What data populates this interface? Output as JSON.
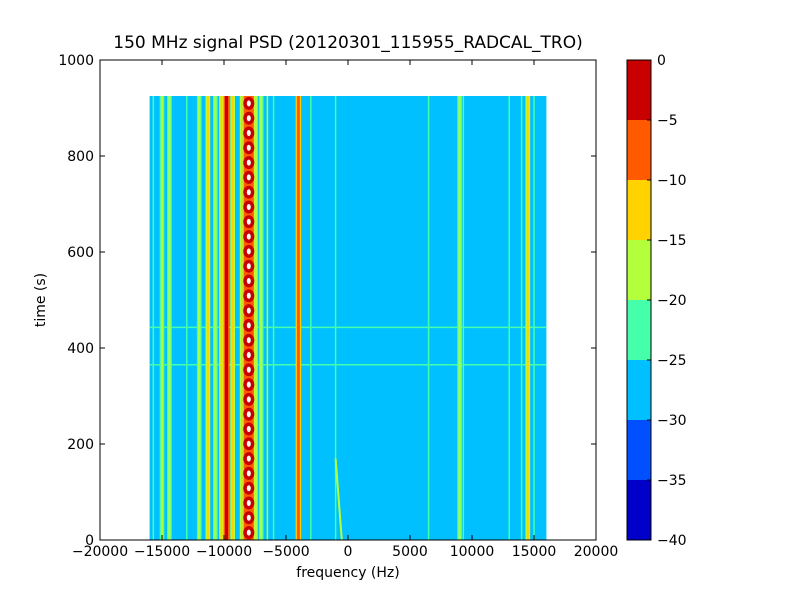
{
  "chart_data": {
    "type": "heatmap",
    "title": "150 MHz signal PSD (20120301_115955_RADCAL_TRO)",
    "xlabel": "frequency (Hz)",
    "ylabel": "time (s)",
    "xlim": [
      -20000,
      20000
    ],
    "ylim": [
      0,
      1000
    ],
    "xticks": [
      -20000,
      -15000,
      -10000,
      -5000,
      0,
      5000,
      10000,
      15000,
      20000
    ],
    "xtick_labels": [
      "−20000",
      "−15000",
      "−10000",
      "−5000",
      "0",
      "5000",
      "10000",
      "15000",
      "20000"
    ],
    "yticks": [
      0,
      200,
      400,
      600,
      800,
      1000
    ],
    "ytick_labels": [
      "0",
      "200",
      "400",
      "600",
      "800",
      "1000"
    ],
    "data_extent": {
      "freq_min": -16000,
      "freq_max": 16000,
      "time_min": 0,
      "time_max": 925
    },
    "background_level": -27.5,
    "colorbar": {
      "levels": [
        0,
        -5,
        -10,
        -15,
        -20,
        -25,
        -30,
        -35,
        -40
      ],
      "tick_labels": [
        "0",
        "−5",
        "−10",
        "−15",
        "−20",
        "−25",
        "−30",
        "−35",
        "−40"
      ],
      "band_colors": [
        "#c80000",
        "#ff5a00",
        "#ffd200",
        "#b4ff3c",
        "#46ffaa",
        "#00c0ff",
        "#0050ff",
        "#0000c8"
      ]
    },
    "vertical_lines": [
      {
        "freq": -15700,
        "level": -22
      },
      {
        "freq": -15000,
        "level": -15
      },
      {
        "freq": -14400,
        "level": -15
      },
      {
        "freq": -13000,
        "level": -20
      },
      {
        "freq": -12000,
        "level": -15
      },
      {
        "freq": -11300,
        "level": -12
      },
      {
        "freq": -10700,
        "level": -15
      },
      {
        "freq": -10200,
        "level": -12
      },
      {
        "freq": -9800,
        "level": -3
      },
      {
        "freq": -9300,
        "level": -12
      },
      {
        "freq": -8500,
        "level": -5
      },
      {
        "freq": -8000,
        "level": -2
      },
      {
        "freq": -7500,
        "level": -10
      },
      {
        "freq": -7000,
        "level": -15
      },
      {
        "freq": -6500,
        "level": -18
      },
      {
        "freq": -6000,
        "level": -22
      },
      {
        "freq": -4000,
        "level": -5
      },
      {
        "freq": -3000,
        "level": -22
      },
      {
        "freq": -1000,
        "level": -22
      },
      {
        "freq": 6500,
        "level": -22
      },
      {
        "freq": 9000,
        "level": -15
      },
      {
        "freq": 9300,
        "level": -22
      },
      {
        "freq": 13000,
        "level": -22
      },
      {
        "freq": 14000,
        "level": -22
      },
      {
        "freq": 14500,
        "level": -10
      },
      {
        "freq": 15000,
        "level": -22
      }
    ],
    "horizontal_lines": [
      {
        "time": 443,
        "freq_min": -16000,
        "freq_max": 16000,
        "level": -22
      },
      {
        "time": 365,
        "freq_min": -16000,
        "freq_max": 16000,
        "level": -22
      }
    ],
    "drift_line": {
      "freq_start": -1000,
      "time_start": 170,
      "freq_end": -500,
      "time_end": 0,
      "level": -18
    },
    "carrier": {
      "freq": -8000,
      "level": -1
    }
  }
}
